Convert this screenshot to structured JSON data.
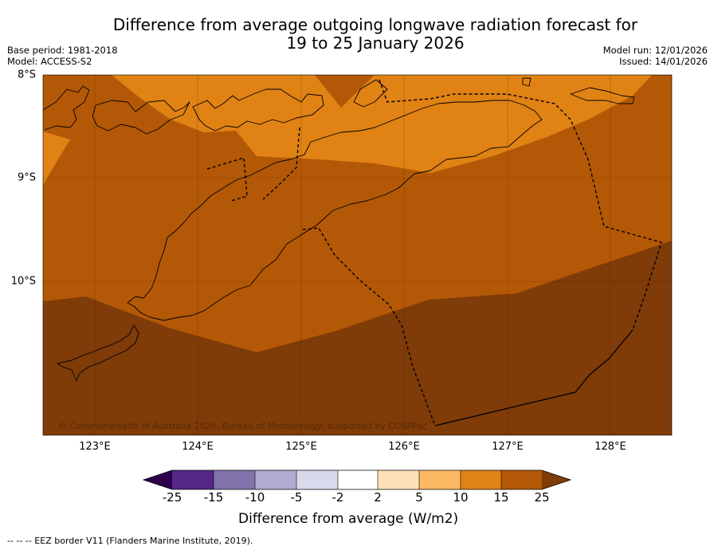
{
  "header": {
    "title": "Difference from average outgoing longwave radiation forecast for\n19 to 25 January 2026",
    "base_period": "Base period: 1981-2018",
    "model": "Model: ACCESS-S2",
    "model_run": "Model run: 12/01/2026",
    "issued": "Issued: 14/01/2026"
  },
  "map": {
    "latitude_labels": [
      "8°S",
      "9°S",
      "10°S"
    ],
    "longitude_labels": [
      "123°E",
      "124°E",
      "125°E",
      "126°E",
      "127°E",
      "128°E"
    ],
    "extent": {
      "lon_min": 122.5,
      "lon_max": 128.6,
      "lat_min": -11.5,
      "lat_max": -8.0
    },
    "credit": "© Commonwealth of Australia 2026, Bureau of Meteorology, supported by COSPPac",
    "colors": {
      "band_5_10": "#fdb863",
      "band_10_15": "#e08214",
      "band_15_25": "#b35806",
      "band_over_25": "#7f3b08"
    }
  },
  "colorbar": {
    "title": "Difference from average (W/m2)",
    "tick_labels": [
      "-25",
      "-15",
      "-10",
      "-5",
      "-2",
      "2",
      "5",
      "10",
      "15",
      "25"
    ],
    "colors": [
      "#2d004b",
      "#542788",
      "#8073ac",
      "#b2abd2",
      "#d8daeb",
      "#ffffff",
      "#fee0b6",
      "#fdb863",
      "#e08214",
      "#b35806",
      "#7f3b08"
    ]
  },
  "footer": {
    "legend": "--  --  -- EEZ border V11 (Flanders Marine Institute, 2019)."
  }
}
